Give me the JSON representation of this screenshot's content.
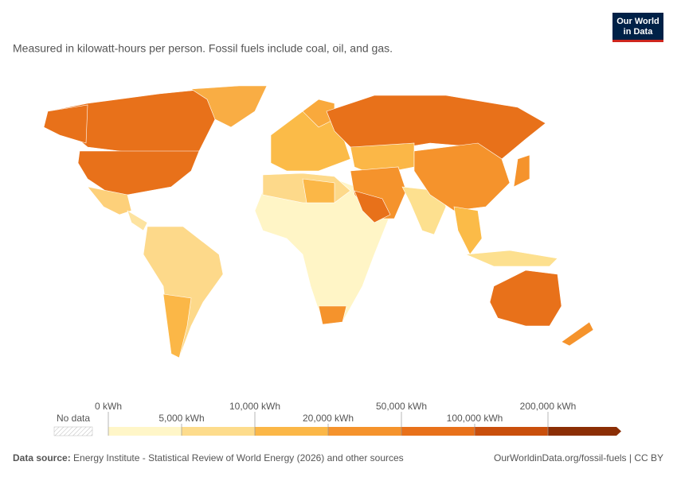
{
  "header": {
    "subtitle": "Measured in kilowatt-hours per person. Fossil fuels include coal, oil, and gas.",
    "logo": [
      "Our World",
      "in Data"
    ]
  },
  "legend": {
    "no_data": "No data",
    "labels": [
      "0 kWh",
      "5,000 kWh",
      "10,000 kWh",
      "20,000 kWh",
      "50,000 kWh",
      "100,000 kWh",
      "200,000 kWh"
    ],
    "colors": [
      "#fff6c8",
      "#fddc8c",
      "#fbb747",
      "#f5932c",
      "#e8711a",
      "#c94f0c",
      "#8b2e05"
    ]
  },
  "footer": {
    "source_label": "Data source:",
    "source": "Energy Institute - Statistical Review of World Energy (2026) and other sources",
    "url": "OurWorldinData.org/fossil-fuels | CC BY"
  }
}
